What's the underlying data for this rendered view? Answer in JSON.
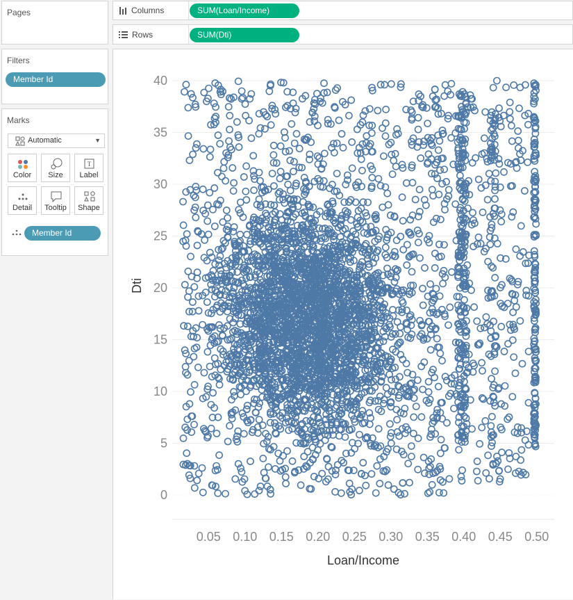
{
  "pages": {
    "title": "Pages"
  },
  "columns_shelf": {
    "label": "Columns",
    "pill": "SUM(Loan/Income)"
  },
  "rows_shelf": {
    "label": "Rows",
    "pill": "SUM(Dti)"
  },
  "filters": {
    "title": "Filters",
    "pills": [
      "Member Id"
    ]
  },
  "marks": {
    "title": "Marks",
    "type_selected": "Automatic",
    "buttons": [
      "Color",
      "Size",
      "Label",
      "Detail",
      "Tooltip",
      "Shape"
    ],
    "detail_pill": "Member Id"
  },
  "colors": {
    "mark": "#4e79a7",
    "pill_green": "#00b180",
    "pill_blue": "#4b9bb5"
  },
  "chart_data": {
    "type": "scatter",
    "xlabel": "Loan/Income",
    "ylabel": "Dti",
    "x_ticks": [
      "0.05",
      "0.10",
      "0.15",
      "0.20",
      "0.25",
      "0.30",
      "0.35",
      "0.40",
      "0.45",
      "0.50"
    ],
    "y_ticks": [
      "0",
      "5",
      "10",
      "15",
      "20",
      "25",
      "30",
      "35",
      "40"
    ],
    "xlim": [
      0.005,
      0.505
    ],
    "ylim": [
      0,
      40
    ],
    "marker": "hollow-circle",
    "grid": "horizontal",
    "note_points": "dense cloud of several thousand points; x mostly 0.01–0.50 (dense 0.05–0.35, vertical bands near 0.40 and 0.50); y 0–40 (densest 5–30)"
  }
}
